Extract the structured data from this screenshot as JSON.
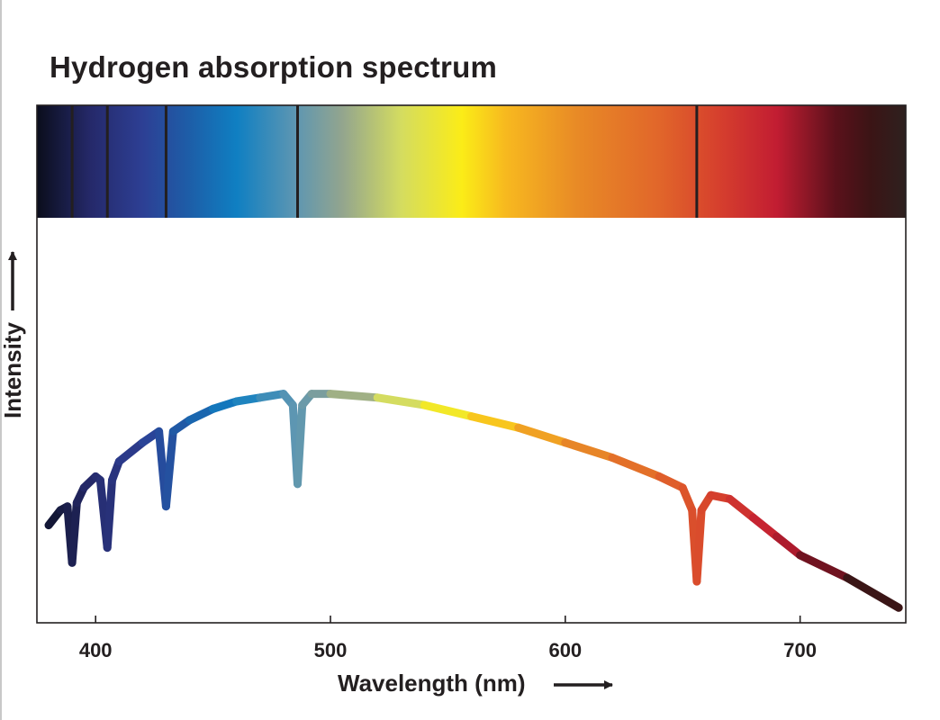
{
  "chart_data": {
    "type": "line",
    "title": "Hydrogen absorption spectrum",
    "xlabel": "Wavelength (nm)",
    "ylabel": "Intensity",
    "xlim": [
      375,
      745
    ],
    "x_ticks": [
      400,
      500,
      600,
      700
    ],
    "x_tick_labels": [
      "400",
      "500",
      "600",
      "700"
    ],
    "y_ticks_shown": false,
    "grid": false,
    "legend": "none",
    "absorption_lines_nm": [
      390,
      405,
      430,
      486,
      656
    ],
    "series": [
      {
        "x": [
          380,
          385,
          388,
          390,
          392,
          395,
          400,
          402,
          405,
          407,
          410,
          420,
          427,
          430,
          433,
          440,
          450,
          460,
          470,
          480,
          484,
          486,
          488,
          492,
          500,
          520,
          540,
          560,
          580,
          600,
          620,
          640,
          650,
          654,
          656,
          658,
          662,
          670,
          680,
          690,
          700,
          720,
          742
        ],
        "y": [
          0.26,
          0.3,
          0.31,
          0.16,
          0.32,
          0.36,
          0.39,
          0.38,
          0.2,
          0.38,
          0.43,
          0.48,
          0.51,
          0.31,
          0.51,
          0.54,
          0.57,
          0.59,
          0.6,
          0.61,
          0.58,
          0.37,
          0.58,
          0.61,
          0.61,
          0.6,
          0.58,
          0.55,
          0.52,
          0.48,
          0.44,
          0.39,
          0.36,
          0.3,
          0.11,
          0.3,
          0.34,
          0.33,
          0.28,
          0.23,
          0.18,
          0.12,
          0.04
        ]
      }
    ]
  },
  "spectrum_stops": [
    {
      "nm": 375,
      "color": "#0b0d1c"
    },
    {
      "nm": 385,
      "color": "#161a3e"
    },
    {
      "nm": 398,
      "color": "#25296a"
    },
    {
      "nm": 420,
      "color": "#2d3f94"
    },
    {
      "nm": 440,
      "color": "#1d5ea8"
    },
    {
      "nm": 460,
      "color": "#0f7fc2"
    },
    {
      "nm": 485,
      "color": "#5d96b2"
    },
    {
      "nm": 505,
      "color": "#93a58e"
    },
    {
      "nm": 530,
      "color": "#d4dc60"
    },
    {
      "nm": 556,
      "color": "#fbec17"
    },
    {
      "nm": 575,
      "color": "#f7b81f"
    },
    {
      "nm": 605,
      "color": "#e88a26"
    },
    {
      "nm": 640,
      "color": "#e1662a"
    },
    {
      "nm": 665,
      "color": "#d6402d"
    },
    {
      "nm": 690,
      "color": "#c21d32"
    },
    {
      "nm": 715,
      "color": "#5b111b"
    },
    {
      "nm": 730,
      "color": "#3b1415"
    },
    {
      "nm": 745,
      "color": "#2e211f"
    }
  ],
  "colors": {
    "axis": "#231f20",
    "absorption_line": "#231f20"
  }
}
